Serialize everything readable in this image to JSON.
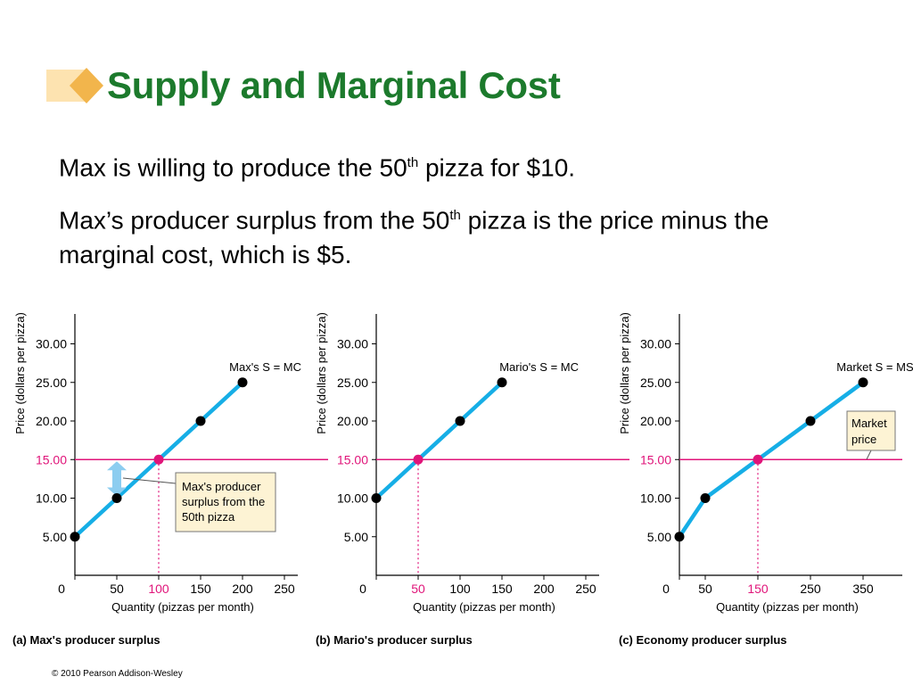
{
  "slide": {
    "title": "Supply and Marginal Cost",
    "bullet1": {
      "pre": "Max is willing to produce the 50",
      "sup": "th",
      "post": " pizza for $10."
    },
    "bullet2": {
      "pre": "Max’s producer surplus from the 50",
      "sup": "th",
      "post": " pizza is the price minus the marginal cost, which is $5."
    },
    "copyright": "© 2010 Pearson Addison-Wesley"
  },
  "colors": {
    "title": "#1c7a2c",
    "supply_line": "#16aee6",
    "price_line": "#e0157a",
    "point": "#000000",
    "highlight_point": "#e0157a",
    "callout_fill": "#fdf3d4",
    "surplus_arrow": "#8ccdf0",
    "logo_light": "#fde3b0",
    "logo_dark": "#f2b54c"
  },
  "chart_data": [
    {
      "type": "line",
      "panel_label": "(a) Max's producer surplus",
      "ylabel": "Price (dollars per pizza)",
      "xlabel": "Quantity (pizzas per month)",
      "xlim": [
        0,
        250
      ],
      "ylim": [
        0,
        35
      ],
      "x_ticks": [
        "0",
        "50",
        "100",
        "150",
        "200",
        "250"
      ],
      "x_tick_values": [
        0,
        50,
        100,
        150,
        200,
        250
      ],
      "y_ticks": [
        "5.00",
        "10.00",
        "15.00",
        "20.00",
        "25.00",
        "30.00"
      ],
      "y_tick_values": [
        5,
        10,
        15,
        20,
        25,
        30
      ],
      "highlight_tick": "100",
      "highlight_ytick": "15.00",
      "series": [
        {
          "name": "Max's S = MC",
          "x": [
            0,
            50,
            100,
            150,
            200
          ],
          "y": [
            5,
            10,
            15,
            20,
            25
          ]
        }
      ],
      "market_price": 15,
      "equilibrium": {
        "x": 100,
        "y": 15
      },
      "annotation": "Max's producer surplus from the 50th pizza"
    },
    {
      "type": "line",
      "panel_label": "(b) Mario's producer surplus",
      "ylabel": "Price (dollars per pizza)",
      "xlabel": "Quantity (pizzas per month)",
      "xlim": [
        0,
        250
      ],
      "ylim": [
        0,
        35
      ],
      "x_ticks": [
        "0",
        "50",
        "100",
        "150",
        "200",
        "250"
      ],
      "x_tick_values": [
        0,
        50,
        100,
        150,
        200,
        250
      ],
      "y_ticks": [
        "5.00",
        "10.00",
        "15.00",
        "20.00",
        "25.00",
        "30.00"
      ],
      "y_tick_values": [
        5,
        10,
        15,
        20,
        25,
        30
      ],
      "highlight_tick": "50",
      "highlight_ytick": "15.00",
      "series": [
        {
          "name": "Mario's S = MC",
          "x": [
            0,
            50,
            100,
            150
          ],
          "y": [
            10,
            15,
            20,
            25
          ]
        }
      ],
      "market_price": 15,
      "equilibrium": {
        "x": 50,
        "y": 15
      }
    },
    {
      "type": "line",
      "panel_label": "(c) Economy producer surplus",
      "ylabel": "Price (dollars per pizza)",
      "xlabel": "Quantity (pizzas per month)",
      "xlim": [
        0,
        400
      ],
      "ylim": [
        0,
        35
      ],
      "x_ticks": [
        "0",
        "50",
        "150",
        "250",
        "350"
      ],
      "x_tick_values": [
        0,
        50,
        150,
        250,
        350
      ],
      "y_ticks": [
        "5.00",
        "10.00",
        "15.00",
        "20.00",
        "25.00",
        "30.00"
      ],
      "y_tick_values": [
        5,
        10,
        15,
        20,
        25,
        30
      ],
      "highlight_tick": "150",
      "highlight_ytick": "15.00",
      "series": [
        {
          "name": "Market S = MSC",
          "x": [
            0,
            50,
            150,
            250,
            350
          ],
          "y": [
            5,
            10,
            15,
            20,
            25
          ]
        }
      ],
      "market_price": 15,
      "equilibrium": {
        "x": 150,
        "y": 15
      },
      "annotation": "Market price"
    }
  ]
}
